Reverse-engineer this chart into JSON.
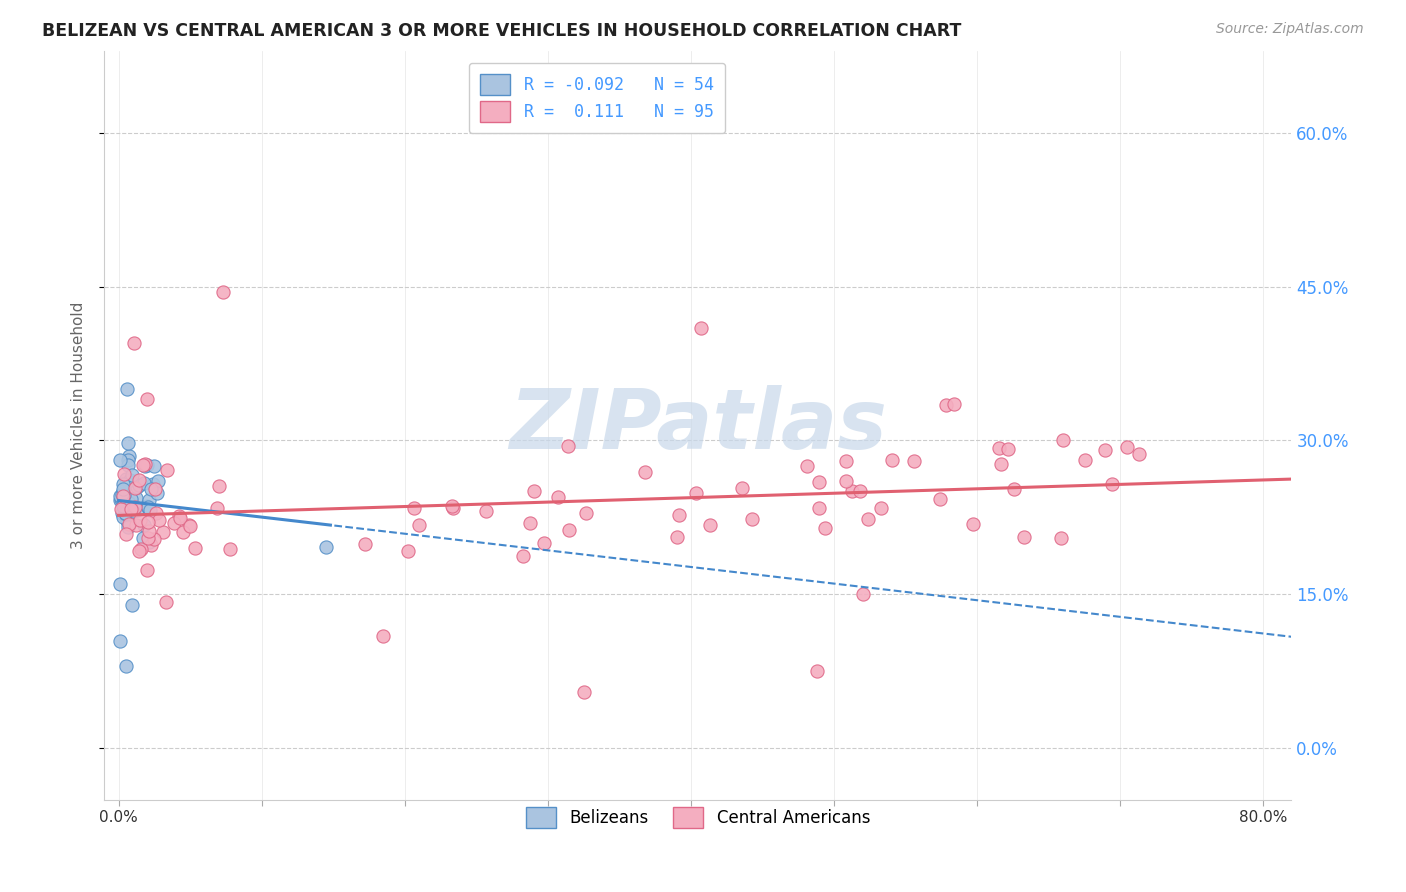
{
  "title": "BELIZEAN VS CENTRAL AMERICAN 3 OR MORE VEHICLES IN HOUSEHOLD CORRELATION CHART",
  "source": "Source: ZipAtlas.com",
  "ylabel": "3 or more Vehicles in Household",
  "xlim": [
    -1.0,
    82.0
  ],
  "ylim": [
    -5.0,
    68.0
  ],
  "yticks": [
    0.0,
    15.0,
    30.0,
    45.0,
    60.0
  ],
  "xtick_vals": [
    0,
    10,
    20,
    30,
    40,
    50,
    60,
    70,
    80
  ],
  "belizean_R": -0.092,
  "belizean_N": 54,
  "central_american_R": 0.111,
  "central_american_N": 95,
  "belizean_color": "#aac4e0",
  "belizean_edge_color": "#5590c8",
  "central_american_color": "#f4aec0",
  "central_american_edge_color": "#e06888",
  "trend_belizean_color": "#4488cc",
  "trend_central_american_color": "#e06070",
  "legend_belizean_label": "Belizeans",
  "legend_central_american_label": "Central Americans",
  "watermark": "ZIPatlas",
  "watermark_color": "#c8d8ea",
  "background_color": "#ffffff",
  "grid_color": "#cccccc",
  "title_color": "#222222",
  "right_axis_color": "#4499ff",
  "source_color": "#999999"
}
